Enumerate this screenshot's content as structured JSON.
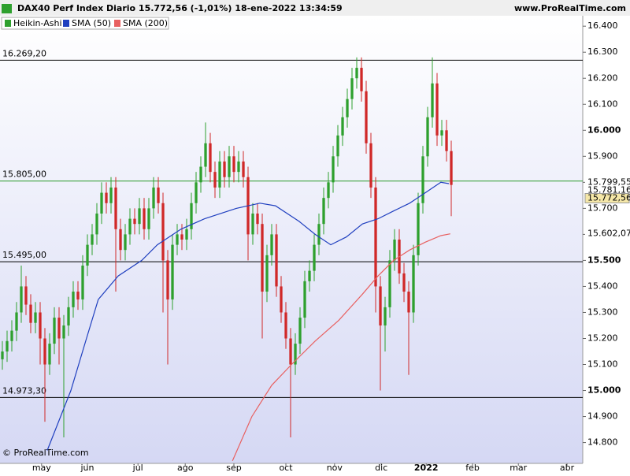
{
  "chart_data": {
    "type": "candlestick",
    "title": "DAX40 Perf Index Diario 15.772,56 (-1,01%) 18-ene-2022 13:34:59",
    "source": "www.ProRealTime.com",
    "footer": "© ProRealTime.com",
    "xlim": [
      -0.5,
      122.83
    ],
    "ylim": [
      14720,
      16440
    ],
    "xticks": [
      {
        "value": 8.3,
        "label": "may"
      },
      {
        "value": 18,
        "label": "jun"
      },
      {
        "value": 28.7,
        "label": "jul"
      },
      {
        "value": 38.7,
        "label": "ago"
      },
      {
        "value": 49,
        "label": "sep"
      },
      {
        "value": 60,
        "label": "oct"
      },
      {
        "value": 70.3,
        "label": "nov"
      },
      {
        "value": 80.2,
        "label": "dic"
      },
      {
        "value": 89.7,
        "label": "2022"
      },
      {
        "value": 99.5,
        "label": "feb"
      },
      {
        "value": 109.2,
        "label": "mar"
      },
      {
        "value": 119.5,
        "label": "abr"
      }
    ],
    "yticks": [
      {
        "value": 14800,
        "label": "14.800"
      },
      {
        "value": 14900,
        "label": "14.900"
      },
      {
        "value": 15000,
        "label": "15.000"
      },
      {
        "value": 15100,
        "label": "15.100"
      },
      {
        "value": 15200,
        "label": "15.200"
      },
      {
        "value": 15300,
        "label": "15.300"
      },
      {
        "value": 15400,
        "label": "15.400"
      },
      {
        "value": 15500,
        "label": "15.500"
      },
      {
        "value": 15600,
        "label": "15.600"
      },
      {
        "value": 15700,
        "label": "15.700"
      },
      {
        "value": 15800,
        "label": "15.800"
      },
      {
        "value": 15900,
        "label": "15.900"
      },
      {
        "value": 16000,
        "label": "16.000"
      },
      {
        "value": 16100,
        "label": "16.100"
      },
      {
        "value": 16200,
        "label": "16.200"
      },
      {
        "value": 16300,
        "label": "16.300"
      },
      {
        "value": 16400,
        "label": "16.400"
      }
    ],
    "up_color": "#2ea02e",
    "down_color": "#d02828",
    "candles": {
      "name": "Heikin-Ashi",
      "open": [
        15120,
        15150,
        15190,
        15230,
        15300,
        15400,
        15330,
        15260,
        15300,
        15200,
        15100,
        15180,
        15280,
        15200,
        15250,
        15320,
        15380,
        15350,
        15480,
        15560,
        15600,
        15680,
        15760,
        15720,
        15780,
        15620,
        15540,
        15600,
        15660,
        15640,
        15700,
        15620,
        15700,
        15780,
        15720,
        15500,
        15350,
        15560,
        15600,
        15580,
        15620,
        15720,
        15800,
        15860,
        15950,
        15840,
        15780,
        15880,
        15820,
        15900,
        15840,
        15880,
        15820,
        15600,
        15680,
        15640,
        15380,
        15520,
        15600,
        15400,
        15300,
        15200,
        15100,
        15180,
        15280,
        15420,
        15460,
        15560,
        15640,
        15740,
        15800,
        15900,
        15980,
        16050,
        16120,
        16200,
        16240,
        16150,
        15950,
        15780,
        15400,
        15250,
        15320,
        15500,
        15580,
        15450,
        15380,
        15300,
        15520,
        15720,
        15900,
        16050,
        16180,
        15980,
        16000,
        15920
      ],
      "high": [
        15190,
        15230,
        15270,
        15340,
        15480,
        15440,
        15370,
        15340,
        15340,
        15240,
        15220,
        15320,
        15320,
        15290,
        15360,
        15420,
        15420,
        15520,
        15600,
        15640,
        15720,
        15800,
        15800,
        15820,
        15820,
        15660,
        15640,
        15700,
        15700,
        15740,
        15740,
        15740,
        15820,
        15820,
        15760,
        15540,
        15600,
        15640,
        15640,
        15660,
        15760,
        15840,
        15900,
        16030,
        15990,
        15880,
        15920,
        15920,
        15940,
        15940,
        15920,
        15920,
        15860,
        15720,
        15720,
        15680,
        15560,
        15640,
        15640,
        15440,
        15340,
        15240,
        15220,
        15320,
        15460,
        15500,
        15600,
        15680,
        15780,
        15840,
        15940,
        16020,
        16090,
        16160,
        16240,
        16280,
        16280,
        16190,
        15990,
        15820,
        15440,
        15360,
        15540,
        15620,
        15620,
        15490,
        15420,
        15560,
        15760,
        15940,
        16090,
        16280,
        16220,
        16040,
        16040,
        15960
      ],
      "low": [
        15080,
        15110,
        15150,
        15190,
        15260,
        15290,
        15220,
        15220,
        15100,
        14880,
        15060,
        15140,
        15100,
        14820,
        15210,
        15280,
        15310,
        15310,
        15440,
        15520,
        15560,
        15640,
        15680,
        15680,
        15380,
        15500,
        15500,
        15560,
        15600,
        15600,
        15580,
        15580,
        15660,
        15680,
        15300,
        15100,
        15310,
        15520,
        15540,
        15540,
        15580,
        15680,
        15760,
        15820,
        15800,
        15740,
        15740,
        15780,
        15780,
        15800,
        15800,
        15780,
        15500,
        15560,
        15600,
        15200,
        15340,
        15480,
        15360,
        15260,
        15160,
        14820,
        15060,
        15140,
        15240,
        15380,
        15420,
        15520,
        15600,
        15700,
        15760,
        15860,
        15940,
        16010,
        16080,
        16160,
        16110,
        15910,
        15740,
        15300,
        15000,
        15150,
        15280,
        15460,
        15410,
        15340,
        15060,
        15260,
        15480,
        15680,
        15860,
        16010,
        15940,
        15940,
        15880,
        15670
      ],
      "close": [
        15150,
        15190,
        15230,
        15300,
        15400,
        15330,
        15260,
        15300,
        15200,
        15100,
        15180,
        15280,
        15200,
        15250,
        15320,
        15380,
        15350,
        15480,
        15560,
        15600,
        15680,
        15760,
        15720,
        15780,
        15620,
        15540,
        15600,
        15660,
        15640,
        15700,
        15620,
        15700,
        15780,
        15720,
        15500,
        15350,
        15560,
        15600,
        15580,
        15620,
        15720,
        15800,
        15860,
        15950,
        15840,
        15780,
        15880,
        15820,
        15900,
        15840,
        15880,
        15820,
        15600,
        15680,
        15640,
        15380,
        15520,
        15600,
        15400,
        15300,
        15200,
        15100,
        15180,
        15280,
        15420,
        15460,
        15560,
        15640,
        15740,
        15800,
        15900,
        15980,
        16050,
        16120,
        16200,
        16240,
        16150,
        15950,
        15780,
        15400,
        15250,
        15320,
        15500,
        15580,
        15450,
        15380,
        15300,
        15520,
        15720,
        15900,
        16050,
        16180,
        15980,
        16000,
        15920,
        15790
      ]
    },
    "series": [
      {
        "name": "SMA (50)",
        "color": "#1f3fbf",
        "x": [
          9.5,
          14.5,
          17.8,
          20.3,
          24.5,
          29.5,
          32.8,
          37.8,
          42.8,
          49.5,
          54.5,
          57.8,
          62.8,
          66.2,
          69.5,
          72.8,
          76.2,
          79.5,
          82.8,
          86.2,
          89.5,
          92.8,
          94.5
        ],
        "values": [
          14770,
          15000,
          15200,
          15350,
          15440,
          15500,
          15560,
          15620,
          15660,
          15700,
          15720,
          15710,
          15650,
          15600,
          15560,
          15590,
          15640,
          15660,
          15690,
          15720,
          15760,
          15800,
          15795
        ]
      },
      {
        "name": "SMA (200)",
        "color": "#e86060",
        "x": [
          48.7,
          52.8,
          57,
          61.2,
          66.2,
          71.2,
          76.2,
          79.5,
          82.8,
          86.2,
          89.5,
          92.8,
          94.8
        ],
        "values": [
          14730,
          14900,
          15020,
          15100,
          15190,
          15270,
          15370,
          15440,
          15500,
          15540,
          15570,
          15595,
          15602
        ]
      }
    ],
    "levels": [
      {
        "value": 16269.2,
        "label": "16.269,20",
        "color": "#000000"
      },
      {
        "value": 15805,
        "label": "15.805,00",
        "color": "#2e9a2e"
      },
      {
        "value": 15495,
        "label": "15.495,00",
        "color": "#000000"
      },
      {
        "value": 14973.3,
        "label": "14.973,30",
        "color": "#000000"
      }
    ],
    "markers": [
      {
        "value": 15799.55,
        "label": "15.799,55",
        "color": "#1f3fbf",
        "box": "#ffffff"
      },
      {
        "value": 15781.16,
        "label": "15.781,16",
        "color": "#000000",
        "box": "#ffffff"
      },
      {
        "value": 15772.56,
        "label": "15.772,56",
        "color": "#000000",
        "box": "#f5e7a8"
      },
      {
        "value": 15602.07,
        "label": "15.602,07",
        "color": "#e86060",
        "box": "#ffffff"
      }
    ]
  }
}
